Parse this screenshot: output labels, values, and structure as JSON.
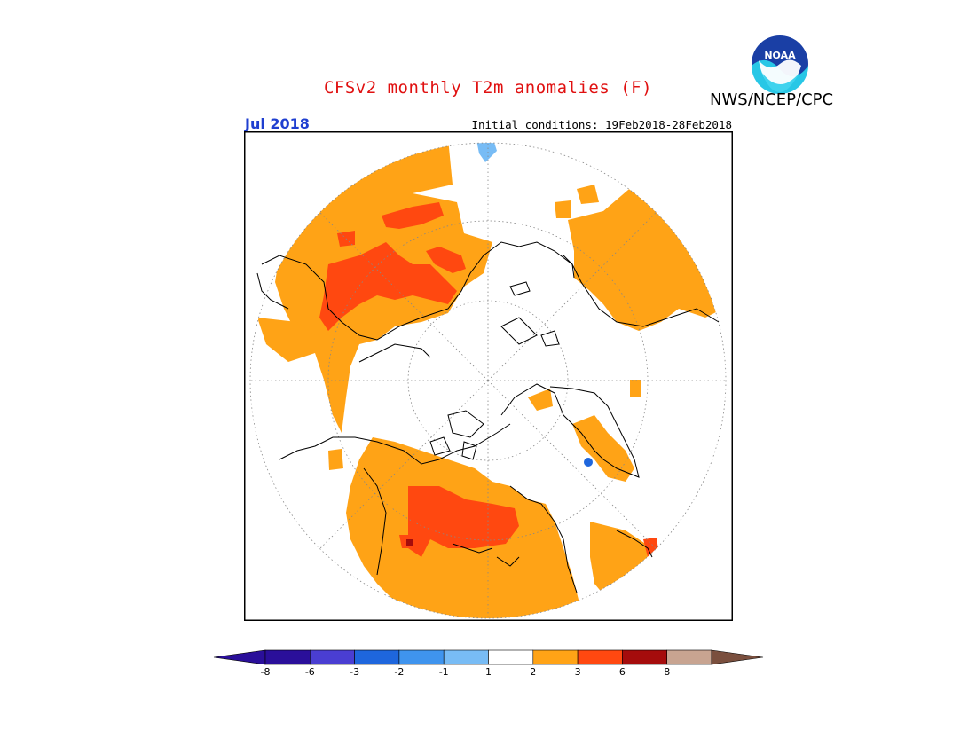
{
  "header": {
    "title": "CFSv2 monthly T2m anomalies (F)",
    "credit": "NWS/NCEP/CPC",
    "month": "Jul 2018",
    "initial_conditions": "Initial conditions: 19Feb2018-28Feb2018",
    "logo_text": "NOAA"
  },
  "legend": {
    "bins": [
      {
        "label": "-8",
        "color": "#2a0f9a"
      },
      {
        "label": "-6",
        "color": "#4a3ed2"
      },
      {
        "label": "-3",
        "color": "#1e66dd"
      },
      {
        "label": "-2",
        "color": "#3f94ee"
      },
      {
        "label": "-1",
        "color": "#78bcf5"
      },
      {
        "label": "1",
        "color": "#ffffff"
      },
      {
        "label": "2",
        "color": "#ffa316"
      },
      {
        "label": "3",
        "color": "#ff4810"
      },
      {
        "label": "6",
        "color": "#a50c0c"
      },
      {
        "label": "8",
        "color": "#c8a491"
      }
    ],
    "overflow_high_color": "#7a4f3e"
  },
  "colors": {
    "warm_1_2": "#ffa316",
    "warm_2_3": "#ff4810",
    "warm_3_6": "#a50c0c",
    "cool_1_2": "#78bcf5",
    "cool_3_6": "#1e66dd",
    "frame": "#000000"
  }
}
